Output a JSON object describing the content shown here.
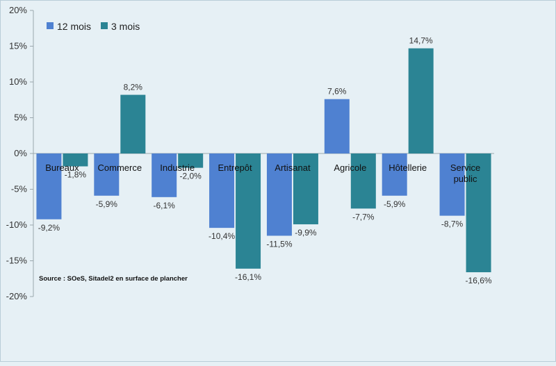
{
  "chart_data": {
    "type": "bar",
    "title": "",
    "xlabel": "",
    "ylabel": "",
    "ylim": [
      -20,
      20
    ],
    "yticks": [
      20,
      15,
      10,
      5,
      0,
      -5,
      -10,
      -15,
      -20
    ],
    "ytick_labels": [
      "20%",
      "15%",
      "10%",
      "5%",
      "0%",
      "-5%",
      "-10%",
      "-15%",
      "-20%"
    ],
    "categories": [
      [
        "Bureaux"
      ],
      [
        "Commerce"
      ],
      [
        "Industrie"
      ],
      [
        "Entrepôt"
      ],
      [
        "Artisanat"
      ],
      [
        "Agricole"
      ],
      [
        "Hôtellerie"
      ],
      [
        "Service",
        "public"
      ]
    ],
    "series": [
      {
        "name": "12 mois",
        "color": "#4f81d1",
        "values": [
          -9.2,
          -5.9,
          -6.1,
          -10.4,
          -11.5,
          7.6,
          -5.9,
          -8.7
        ],
        "labels": [
          "-9,2%",
          "-5,9%",
          "-6,1%",
          "-10,4%",
          "-11,5%",
          "7,6%",
          "-5,9%",
          "-8,7%"
        ]
      },
      {
        "name": "3 mois",
        "color": "#2b8494",
        "values": [
          -1.8,
          8.2,
          -2.0,
          -16.1,
          -9.9,
          -7.7,
          14.7,
          -16.6
        ],
        "labels": [
          "-1,8%",
          "8,2%",
          "-2,0%",
          "-16,1%",
          "-9,9%",
          "-7,7%",
          "14,7%",
          "-16,6%"
        ]
      }
    ],
    "legend_position": "top-left",
    "grid": false,
    "source": "Source : SOeS, Sitadel2 en surface de plancher"
  }
}
